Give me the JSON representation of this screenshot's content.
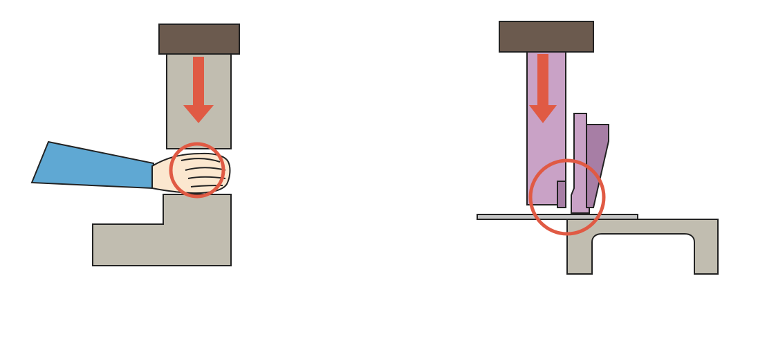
{
  "colors": {
    "ram_cap": "#6b5a4e",
    "ram_body_left": "#c1bdb0",
    "ram_body_right": "#c9a2c6",
    "guard_plate": "#a77ea5",
    "arrow": "#e05a44",
    "hazard_circle": "#e05a44",
    "sleeve": "#5fa8d3",
    "skin": "#fbe7cf",
    "base": "#c1bdb0",
    "outline": "#222222",
    "sheet": "#c6c6c6"
  },
  "icons": {
    "left": [
      "press-ram",
      "downward-arrow",
      "hand",
      "sleeve",
      "press-bed",
      "hazard-circle"
    ],
    "right": [
      "press-ram",
      "downward-arrow",
      "guard-plate",
      "workpiece-sheet",
      "press-bed",
      "hazard-circle"
    ]
  }
}
